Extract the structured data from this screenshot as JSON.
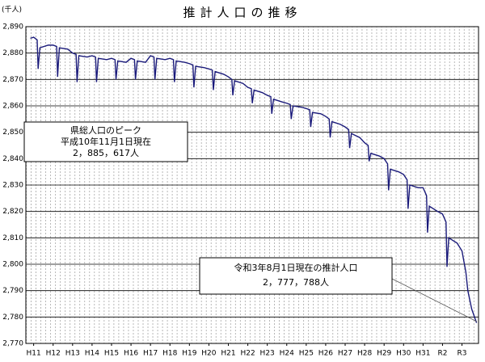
{
  "chart_data": {
    "type": "line",
    "title": "推計人口の推移",
    "y_unit": "(千人)",
    "xlim": [
      10.6,
      33.85
    ],
    "xticks": [
      {
        "value": 11,
        "label": "H11"
      },
      {
        "value": 12,
        "label": "H12"
      },
      {
        "value": 13,
        "label": "H13"
      },
      {
        "value": 14,
        "label": "H14"
      },
      {
        "value": 15,
        "label": "H15"
      },
      {
        "value": 16,
        "label": "H16"
      },
      {
        "value": 17,
        "label": "H17"
      },
      {
        "value": 18,
        "label": "H18"
      },
      {
        "value": 19,
        "label": "H19"
      },
      {
        "value": 20,
        "label": "H20"
      },
      {
        "value": 21,
        "label": "H21"
      },
      {
        "value": 22,
        "label": "H22"
      },
      {
        "value": 23,
        "label": "H23"
      },
      {
        "value": 24,
        "label": "H24"
      },
      {
        "value": 25,
        "label": "H25"
      },
      {
        "value": 26,
        "label": "H26"
      },
      {
        "value": 27,
        "label": "H27"
      },
      {
        "value": 28,
        "label": "H28"
      },
      {
        "value": 29,
        "label": "H29"
      },
      {
        "value": 30,
        "label": "H30"
      },
      {
        "value": 31,
        "label": "H31"
      },
      {
        "value": 32,
        "label": "R2"
      },
      {
        "value": 33,
        "label": "R3"
      }
    ],
    "ylim": [
      2770,
      2890
    ],
    "yticks": [
      {
        "value": 2770,
        "label": "2,770"
      },
      {
        "value": 2780,
        "label": "2,780"
      },
      {
        "value": 2790,
        "label": "2,790"
      },
      {
        "value": 2800,
        "label": "2,800"
      },
      {
        "value": 2810,
        "label": "2,810"
      },
      {
        "value": 2820,
        "label": "2,820"
      },
      {
        "value": 2830,
        "label": "2,830"
      },
      {
        "value": 2840,
        "label": "2,840"
      },
      {
        "value": 2850,
        "label": "2,850"
      },
      {
        "value": 2860,
        "label": "2,860"
      },
      {
        "value": 2870,
        "label": "2,870"
      },
      {
        "value": 2880,
        "label": "2,880"
      },
      {
        "value": 2890,
        "label": "2,890"
      }
    ],
    "grid": true,
    "series": [
      {
        "color": "#1a1a7a",
        "x": [
          10.83,
          11,
          11.18,
          11.23,
          11.32,
          11.75,
          12,
          12.18,
          12.23,
          12.32,
          12.75,
          13,
          13.18,
          13.23,
          13.32,
          13.75,
          14,
          14.18,
          14.23,
          14.32,
          14.75,
          15,
          15.18,
          15.23,
          15.32,
          15.75,
          16,
          16.18,
          16.23,
          16.32,
          16.75,
          17,
          17.18,
          17.23,
          17.32,
          17.75,
          18,
          18.18,
          18.23,
          18.32,
          18.75,
          19,
          19.18,
          19.23,
          19.32,
          19.75,
          20,
          20.18,
          20.23,
          20.32,
          20.75,
          21,
          21.18,
          21.23,
          21.32,
          21.75,
          22,
          22.18,
          22.23,
          22.32,
          22.75,
          23,
          23.18,
          23.23,
          23.32,
          23.75,
          24,
          24.18,
          24.23,
          24.32,
          24.75,
          25,
          25.18,
          25.23,
          25.32,
          25.75,
          26,
          26.18,
          26.23,
          26.32,
          26.75,
          27,
          27.18,
          27.23,
          27.32,
          27.75,
          28,
          28.18,
          28.23,
          28.32,
          28.75,
          29,
          29.18,
          29.23,
          29.32,
          29.75,
          30,
          30.18,
          30.23,
          30.32,
          30.75,
          31,
          31.18,
          31.23,
          31.32,
          31.75,
          32,
          32.18,
          32.23,
          32.32,
          32.75,
          33,
          33.2,
          33.3,
          33.5,
          33.75
        ],
        "values": [
          2885.6,
          2886,
          2885,
          2874,
          2882,
          2883,
          2883,
          2882.5,
          2871,
          2882,
          2881.5,
          2880,
          2879.5,
          2869,
          2879,
          2878.5,
          2879,
          2878.5,
          2869,
          2878,
          2877.5,
          2878,
          2877.5,
          2870,
          2877,
          2876.5,
          2878,
          2877.5,
          2870,
          2877,
          2876.5,
          2879,
          2878.5,
          2870,
          2878,
          2877.5,
          2878,
          2877.5,
          2869,
          2877,
          2876.5,
          2876,
          2875.5,
          2867,
          2875,
          2874.5,
          2874,
          2873.5,
          2866,
          2873,
          2872,
          2871,
          2870,
          2864,
          2869.5,
          2868.5,
          2867,
          2866.5,
          2861,
          2866,
          2865,
          2864,
          2863.5,
          2857,
          2862.5,
          2861.5,
          2861,
          2860.5,
          2855,
          2860,
          2859.5,
          2859,
          2858.5,
          2852,
          2857.5,
          2857,
          2856,
          2855,
          2848,
          2854,
          2853,
          2852,
          2851,
          2844,
          2849.5,
          2848,
          2846,
          2845,
          2839,
          2842,
          2841,
          2840,
          2838,
          2828,
          2836,
          2835,
          2834,
          2832,
          2821,
          2830,
          2829,
          2829,
          2826,
          2812,
          2822,
          2820,
          2819,
          2816,
          2799,
          2810,
          2808,
          2805,
          2797,
          2790,
          2783,
          2777.788
        ]
      }
    ],
    "annotations": [
      {
        "lines": [
          "県総人口のピーク",
          "平成10年11月1日現在",
          "2，885，617人"
        ]
      },
      {
        "lines": [
          "令和3年8月1日現在の推計人口",
          "2，777，788人"
        ]
      }
    ]
  }
}
